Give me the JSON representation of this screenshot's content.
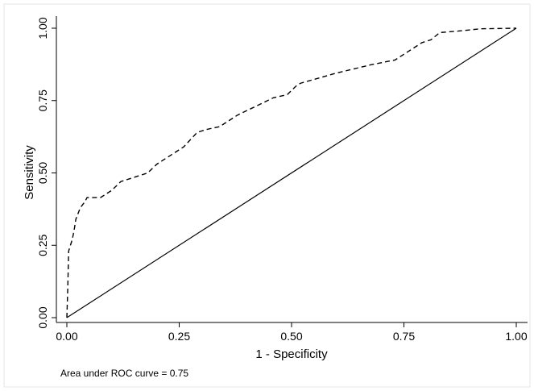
{
  "chart_data": {
    "type": "line",
    "title": "",
    "xlabel": "1 - Specificity",
    "ylabel": "Sensitivity",
    "xlim": [
      0,
      1
    ],
    "ylim": [
      0,
      1
    ],
    "x_ticks": [
      "0.00",
      "0.25",
      "0.50",
      "0.75",
      "1.00"
    ],
    "y_ticks": [
      "0.00",
      "0.25",
      "0.50",
      "0.75",
      "1.00"
    ],
    "grid": false,
    "legend": "none",
    "note": "Area under ROC curve = 0.75",
    "series": [
      {
        "style": "dashed",
        "color": "#000000",
        "points": [
          [
            0.0,
            0.0
          ],
          [
            0.002,
            0.1
          ],
          [
            0.004,
            0.23
          ],
          [
            0.008,
            0.25
          ],
          [
            0.012,
            0.27
          ],
          [
            0.016,
            0.3
          ],
          [
            0.02,
            0.34
          ],
          [
            0.025,
            0.36
          ],
          [
            0.03,
            0.38
          ],
          [
            0.04,
            0.4
          ],
          [
            0.045,
            0.415
          ],
          [
            0.075,
            0.415
          ],
          [
            0.1,
            0.44
          ],
          [
            0.12,
            0.47
          ],
          [
            0.14,
            0.48
          ],
          [
            0.16,
            0.49
          ],
          [
            0.18,
            0.5
          ],
          [
            0.2,
            0.53
          ],
          [
            0.23,
            0.56
          ],
          [
            0.26,
            0.59
          ],
          [
            0.29,
            0.64
          ],
          [
            0.31,
            0.65
          ],
          [
            0.34,
            0.66
          ],
          [
            0.38,
            0.7
          ],
          [
            0.42,
            0.73
          ],
          [
            0.46,
            0.76
          ],
          [
            0.49,
            0.77
          ],
          [
            0.51,
            0.8
          ],
          [
            0.52,
            0.81
          ],
          [
            0.6,
            0.845
          ],
          [
            0.68,
            0.875
          ],
          [
            0.73,
            0.89
          ],
          [
            0.76,
            0.92
          ],
          [
            0.79,
            0.95
          ],
          [
            0.81,
            0.96
          ],
          [
            0.83,
            0.985
          ],
          [
            0.87,
            0.99
          ],
          [
            0.92,
            0.998
          ],
          [
            1.0,
            1.0
          ]
        ]
      },
      {
        "style": "solid",
        "color": "#000000",
        "points": [
          [
            0,
            0
          ],
          [
            1,
            1
          ]
        ]
      }
    ]
  }
}
